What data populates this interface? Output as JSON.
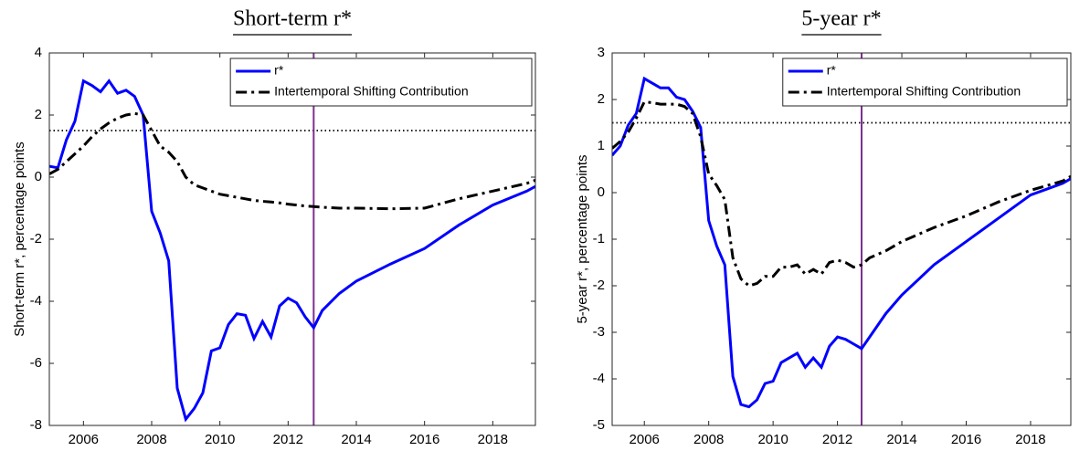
{
  "chart_data": [
    {
      "type": "line",
      "title": "Short-term r*",
      "ylabel": "Short-term r*, percentage points",
      "x": [
        2005,
        2005.25,
        2005.5,
        2005.75,
        2006,
        2006.25,
        2006.5,
        2006.75,
        2007,
        2007.25,
        2007.5,
        2007.75,
        2008,
        2008.25,
        2008.5,
        2008.75,
        2009,
        2009.25,
        2009.5,
        2009.75,
        2010,
        2010.25,
        2010.5,
        2010.75,
        2011,
        2011.25,
        2011.5,
        2011.75,
        2012,
        2012.25,
        2012.5,
        2012.75,
        2013,
        2013.5,
        2014,
        2015,
        2016,
        2017,
        2018,
        2019,
        2019.25
      ],
      "series": [
        {
          "name": "r*",
          "color": "#0000ff",
          "style": "solid",
          "values": [
            0.35,
            0.3,
            1.2,
            1.8,
            3.1,
            2.95,
            2.75,
            3.1,
            2.7,
            2.8,
            2.6,
            2.0,
            -1.1,
            -1.8,
            -2.7,
            -6.8,
            -7.8,
            -7.45,
            -6.95,
            -5.6,
            -5.5,
            -4.75,
            -4.4,
            -4.45,
            -5.2,
            -4.65,
            -5.15,
            -4.15,
            -3.9,
            -4.05,
            -4.5,
            -4.85,
            -4.3,
            -3.75,
            -3.35,
            -2.8,
            -2.3,
            -1.55,
            -0.9,
            -0.45,
            -0.3
          ]
        },
        {
          "name": "Intertemporal Shifting Contribution",
          "color": "#000000",
          "style": "dashdot",
          "values": [
            0.1,
            0.25,
            0.5,
            0.75,
            1.0,
            1.3,
            1.55,
            1.75,
            1.9,
            2.0,
            2.05,
            2.0,
            1.5,
            1.0,
            0.8,
            0.5,
            0.0,
            -0.25,
            -0.35,
            -0.45,
            -0.55,
            -0.6,
            -0.65,
            -0.7,
            -0.75,
            -0.78,
            -0.8,
            -0.83,
            -0.87,
            -0.9,
            -0.93,
            -0.95,
            -0.97,
            -1.0,
            -1.0,
            -1.02,
            -1.0,
            -0.7,
            -0.45,
            -0.2,
            -0.1
          ]
        }
      ],
      "xlim": [
        2005,
        2019.25
      ],
      "ylim": [
        -8,
        4
      ],
      "xticks": [
        2006,
        2008,
        2010,
        2012,
        2014,
        2016,
        2018
      ],
      "yticks": [
        -8,
        -6,
        -4,
        -2,
        0,
        2,
        4
      ],
      "hline": 1.5,
      "vline": 2012.75,
      "vline_color": "#7e2f8e",
      "legend": "northeast"
    },
    {
      "type": "line",
      "title": "5-year r*",
      "ylabel": "5-year r*, percentage points",
      "x": [
        2005,
        2005.25,
        2005.5,
        2005.75,
        2006,
        2006.25,
        2006.5,
        2006.75,
        2007,
        2007.25,
        2007.5,
        2007.75,
        2008,
        2008.25,
        2008.5,
        2008.75,
        2009,
        2009.25,
        2009.5,
        2009.75,
        2010,
        2010.25,
        2010.5,
        2010.75,
        2011,
        2011.25,
        2011.5,
        2011.75,
        2012,
        2012.25,
        2012.5,
        2012.75,
        2013,
        2013.5,
        2014,
        2015,
        2016,
        2017,
        2018,
        2019,
        2019.25
      ],
      "series": [
        {
          "name": "r*",
          "color": "#0000ff",
          "style": "solid",
          "values": [
            0.8,
            1.0,
            1.45,
            1.7,
            2.45,
            2.35,
            2.25,
            2.25,
            2.05,
            2.0,
            1.75,
            1.4,
            -0.6,
            -1.15,
            -1.55,
            -3.95,
            -4.55,
            -4.6,
            -4.45,
            -4.1,
            -4.05,
            -3.65,
            -3.55,
            -3.45,
            -3.75,
            -3.55,
            -3.75,
            -3.3,
            -3.1,
            -3.15,
            -3.25,
            -3.35,
            -3.1,
            -2.6,
            -2.2,
            -1.55,
            -1.05,
            -0.55,
            -0.05,
            0.2,
            0.3
          ]
        },
        {
          "name": "Intertemporal Shifting Contribution",
          "color": "#000000",
          "style": "dashdot",
          "values": [
            0.95,
            1.1,
            1.3,
            1.6,
            1.95,
            1.93,
            1.9,
            1.9,
            1.9,
            1.85,
            1.7,
            1.2,
            0.4,
            0.15,
            -0.15,
            -1.4,
            -1.85,
            -2.0,
            -1.95,
            -1.8,
            -1.8,
            -1.6,
            -1.6,
            -1.55,
            -1.75,
            -1.65,
            -1.75,
            -1.5,
            -1.45,
            -1.5,
            -1.6,
            -1.55,
            -1.4,
            -1.25,
            -1.05,
            -0.75,
            -0.5,
            -0.2,
            0.05,
            0.25,
            0.35
          ]
        }
      ],
      "xlim": [
        2005,
        2019.25
      ],
      "ylim": [
        -5,
        3
      ],
      "xticks": [
        2006,
        2008,
        2010,
        2012,
        2014,
        2016,
        2018
      ],
      "yticks": [
        -5,
        -4,
        -3,
        -2,
        -1,
        0,
        1,
        2,
        3
      ],
      "hline": 1.5,
      "vline": 2012.75,
      "vline_color": "#7e2f8e",
      "legend": "northeast"
    }
  ]
}
